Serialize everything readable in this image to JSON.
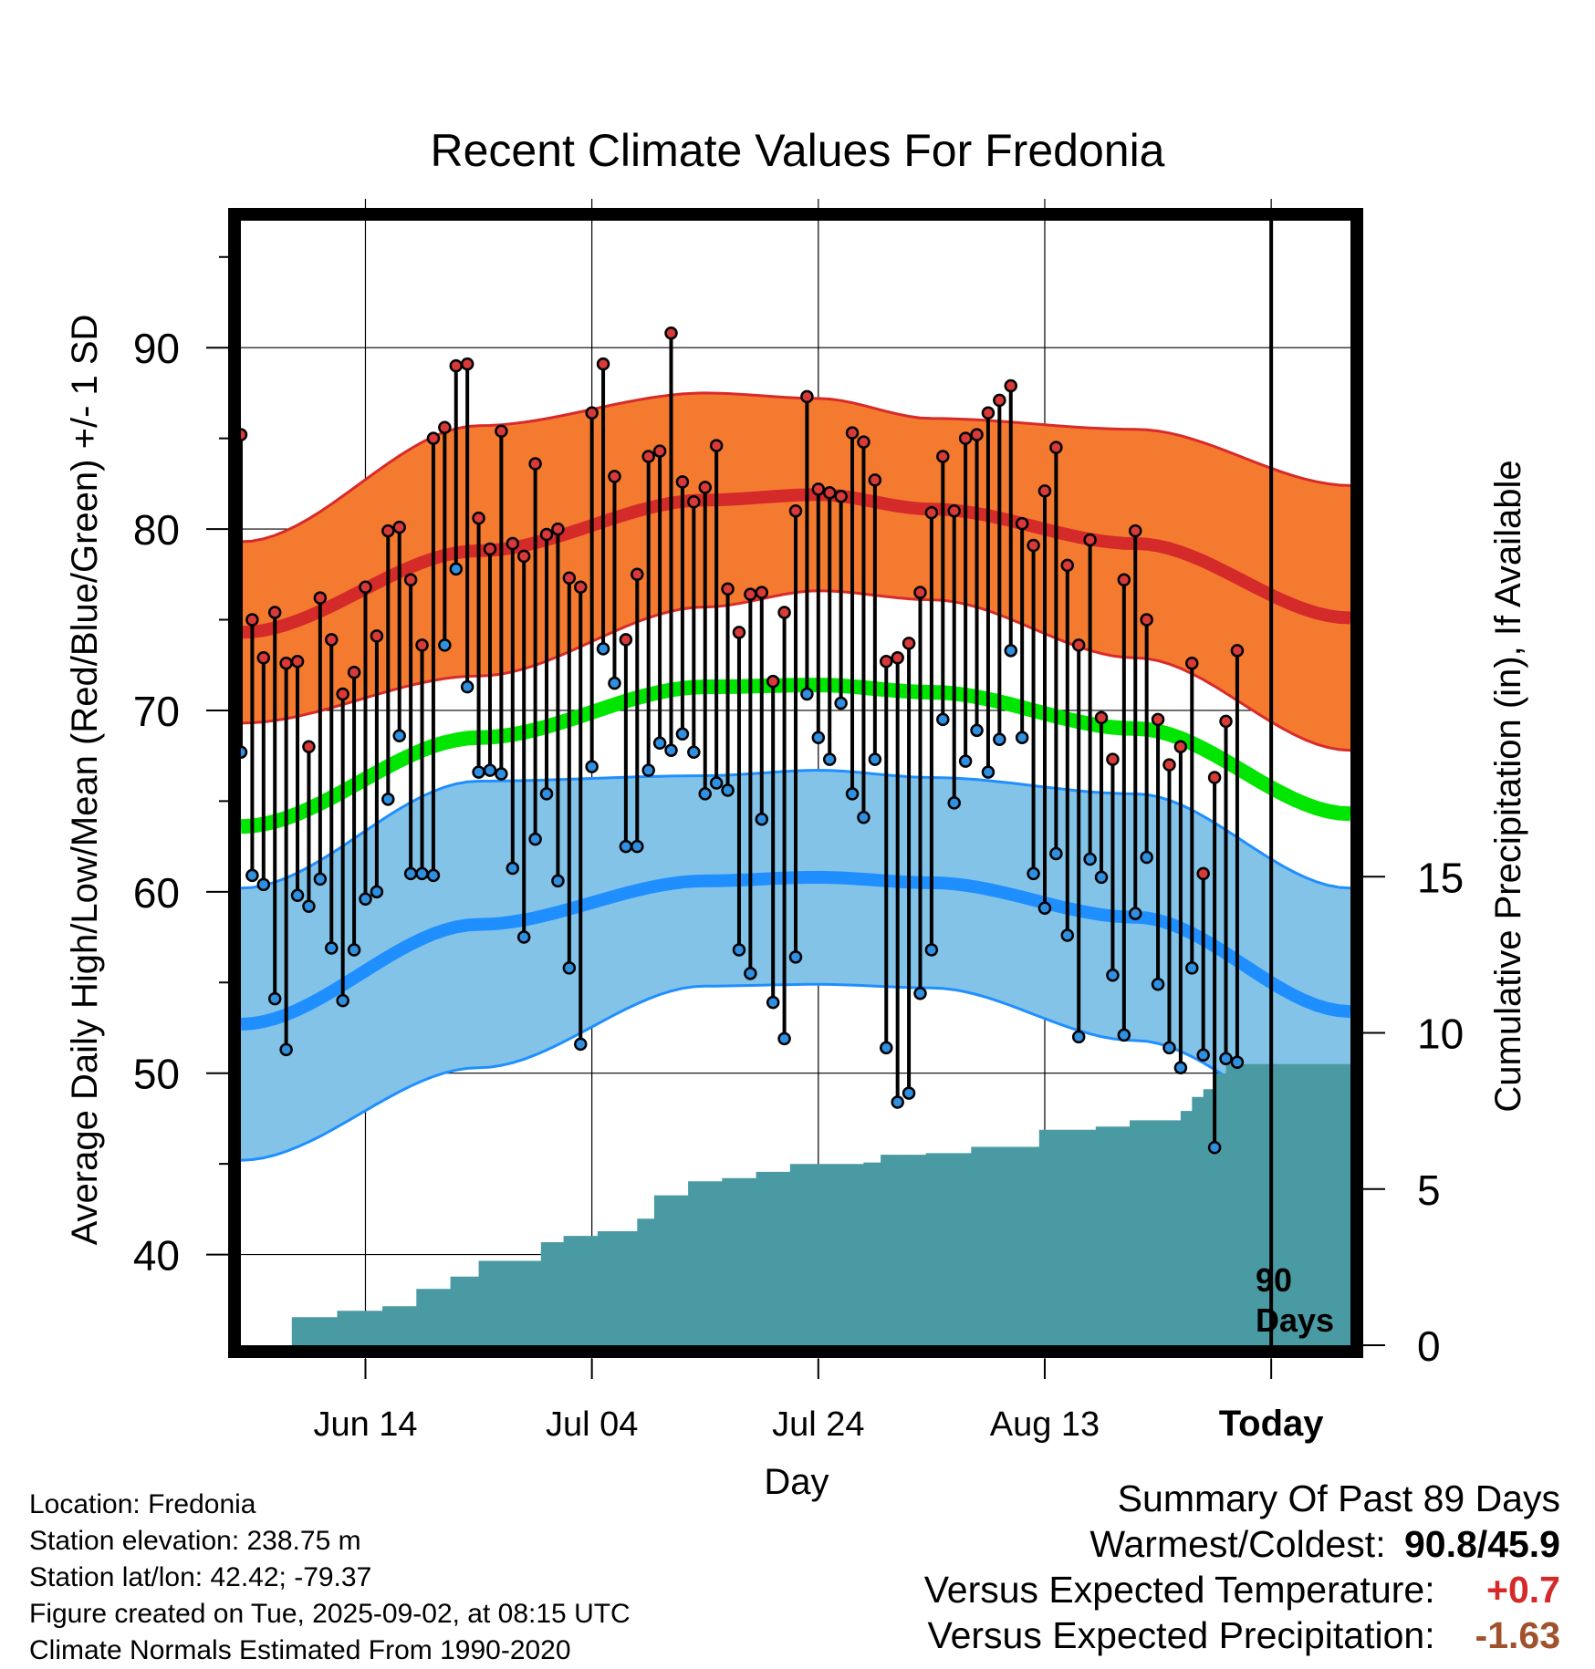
{
  "chart_data": {
    "type": "line",
    "title": "Recent Climate Values For Fredonia",
    "xlabel": "Day",
    "ylabel": "Average Daily High/Low/Mean (Red/Blue/Green) +/- 1 SD",
    "ylabel_right": "Cumulative Precipitation (in), If Available",
    "ylim": [
      35,
      97
    ],
    "ylim_right": [
      0,
      36
    ],
    "y_ticks": [
      40,
      50,
      60,
      70,
      80,
      90
    ],
    "y_right_ticks": [
      0,
      5,
      10,
      15
    ],
    "x_range_days": [
      -89,
      9
    ],
    "x_ticks": [
      {
        "day": -78,
        "label": "Jun 14"
      },
      {
        "day": -58,
        "label": "Jul 04"
      },
      {
        "day": -38,
        "label": "Jul 24"
      },
      {
        "day": -18,
        "label": "Aug 13"
      },
      {
        "day": 2,
        "label": "Today"
      }
    ],
    "today_marker": {
      "day": 2,
      "label_line1": "90",
      "label_line2": "Days"
    },
    "grid": true,
    "colors": {
      "high_band": "#f47a30",
      "high_band_edge": "#d82a2a",
      "high_mean": "#d42a2a",
      "low_band": "#84c3e8",
      "low_band_edge": "#1f8fff",
      "low_mean": "#1f8fff",
      "mean_line": "#00e600",
      "precip": "#4a9aa3",
      "high_dot": "#d83a3a",
      "low_dot": "#2f8fe0"
    },
    "normals": {
      "high_mean": {
        "x": [
          -89,
          -68,
          -48,
          -38,
          -28,
          -10,
          9
        ],
        "y": [
          74.3,
          78.8,
          81.6,
          81.9,
          81.1,
          79.2,
          75.1
        ]
      },
      "high_sd": {
        "x": [
          -89,
          -68,
          -48,
          -38,
          -28,
          -10,
          9
        ],
        "y": [
          5.0,
          6.9,
          5.9,
          5.3,
          5.0,
          6.3,
          7.3
        ]
      },
      "low_mean": {
        "x": [
          -89,
          -68,
          -48,
          -38,
          -28,
          -10,
          9
        ],
        "y": [
          52.7,
          58.2,
          60.6,
          60.8,
          60.5,
          58.6,
          53.4
        ]
      },
      "low_sd": {
        "x": [
          -89,
          -68,
          -48,
          -38,
          -28,
          -10,
          9
        ],
        "y": [
          7.5,
          7.9,
          5.8,
          5.9,
          5.8,
          6.8,
          6.8
        ]
      },
      "mean": {
        "x": [
          -89,
          -68,
          -48,
          -38,
          -28,
          -10,
          9
        ],
        "y": [
          63.6,
          68.5,
          71.3,
          71.4,
          71.0,
          69.0,
          64.3
        ]
      }
    },
    "daily": {
      "high": [
        85.2,
        75.0,
        72.9,
        75.4,
        72.6,
        72.7,
        68.0,
        76.2,
        73.9,
        70.9,
        72.1,
        76.8,
        74.1,
        79.9,
        80.1,
        77.2,
        73.6,
        85.0,
        85.6,
        89.0,
        89.1,
        80.6,
        78.9,
        85.4,
        79.2,
        78.5,
        83.6,
        79.7,
        80.0,
        77.3,
        76.8,
        86.4,
        89.1,
        82.9,
        73.9,
        77.5,
        84.0,
        84.3,
        90.8,
        82.6,
        81.5,
        82.3,
        84.6,
        76.7,
        74.3,
        76.4,
        76.5,
        71.6,
        75.4,
        81.0,
        87.3,
        82.2,
        82.0,
        81.8,
        85.3,
        84.8,
        82.7,
        72.7,
        72.9,
        73.7,
        76.5,
        80.9,
        84.0,
        81.0,
        85.0,
        85.2,
        86.4,
        87.1,
        87.9,
        80.3,
        79.1,
        82.1,
        84.5,
        78.0,
        73.6,
        79.4,
        69.6,
        67.3,
        77.2,
        79.9,
        75.0,
        69.5,
        67.0,
        68.0,
        72.6,
        61.0,
        66.3,
        69.4,
        73.3
      ],
      "low": [
        67.7,
        60.9,
        60.4,
        54.1,
        51.3,
        59.8,
        59.2,
        60.7,
        56.9,
        54.0,
        56.8,
        59.6,
        60.0,
        65.1,
        68.6,
        61.0,
        61.0,
        60.9,
        73.6,
        77.8,
        71.3,
        66.6,
        66.7,
        66.5,
        61.3,
        57.5,
        62.9,
        65.4,
        60.6,
        55.8,
        51.6,
        66.9,
        73.4,
        71.5,
        62.5,
        62.5,
        66.7,
        68.2,
        67.8,
        68.7,
        67.7,
        65.4,
        66.0,
        65.6,
        56.8,
        55.5,
        64.0,
        53.9,
        51.9,
        56.4,
        70.9,
        68.5,
        67.3,
        70.4,
        65.4,
        64.1,
        67.3,
        51.4,
        48.4,
        48.9,
        54.4,
        56.8,
        69.5,
        64.9,
        67.2,
        68.9,
        66.6,
        68.4,
        73.3,
        68.5,
        61.0,
        59.1,
        62.1,
        57.6,
        52.0,
        61.8,
        60.8,
        55.4,
        52.1,
        58.8,
        61.9,
        54.9,
        51.4,
        50.3,
        55.8,
        51.0,
        45.9,
        50.8,
        50.6
      ]
    },
    "precip": {
      "x": [
        -89,
        -84.5,
        -84.5,
        -80.5,
        -80.5,
        -76.5,
        -76.5,
        -73.5,
        -73.5,
        -70.5,
        -70.5,
        -68,
        -68,
        -62.5,
        -62.5,
        -60.5,
        -60.5,
        -57.5,
        -57.5,
        -54,
        -54,
        -52.5,
        -52.5,
        -49.5,
        -49.5,
        -46.5,
        -46.5,
        -43.5,
        -43.5,
        -40.5,
        -40.5,
        -34,
        -34,
        -32.5,
        -32.5,
        -28.5,
        -28.5,
        -24.5,
        -24.5,
        -18.5,
        -18.5,
        -13.5,
        -13.5,
        -10.5,
        -10.5,
        -6,
        -6,
        -5,
        -5,
        -4,
        -4,
        -3,
        -3,
        -2,
        -2,
        9
      ],
      "y": [
        0,
        0,
        0.9,
        0.9,
        1.1,
        1.1,
        1.25,
        1.25,
        1.8,
        1.8,
        2.2,
        2.2,
        2.7,
        2.7,
        3.3,
        3.3,
        3.5,
        3.5,
        3.65,
        3.65,
        4.05,
        4.05,
        4.8,
        4.8,
        5.25,
        5.25,
        5.35,
        5.35,
        5.55,
        5.55,
        5.8,
        5.8,
        5.85,
        5.85,
        6.1,
        6.1,
        6.15,
        6.15,
        6.35,
        6.35,
        6.9,
        6.9,
        7.0,
        7.0,
        7.2,
        7.2,
        7.5,
        7.5,
        7.95,
        7.95,
        8.2,
        8.2,
        8.7,
        8.7,
        9.0,
        9.0
      ]
    }
  },
  "footer": {
    "location": "Location: Fredonia",
    "elevation": "Station elevation: 238.75 m",
    "latlon": "Station lat/lon: 42.42; -79.37",
    "created": "Figure created on Tue, 2025-09-02, at 08:15 UTC",
    "normals": "Climate Normals Estimated From 1990-2020"
  },
  "summary": {
    "heading": "Summary Of Past 89 Days",
    "warm_label": "Warmest/Coldest:",
    "warm_value": "90.8/45.9",
    "temp_label": "Versus Expected Temperature:",
    "temp_value": "+0.7",
    "temp_color": "#d42a2a",
    "precip_label": "Versus Expected Precipitation:",
    "precip_value": "-1.63",
    "precip_color": "#a0522d"
  }
}
